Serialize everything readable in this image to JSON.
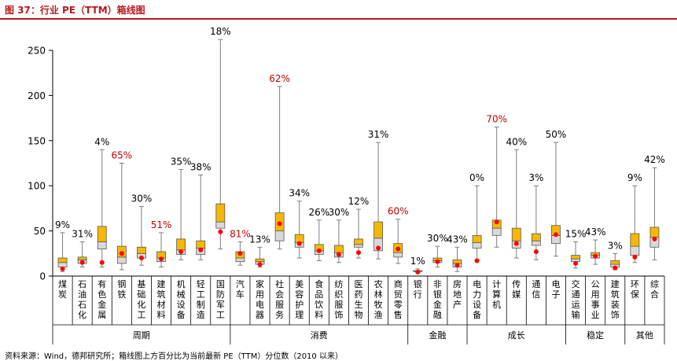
{
  "figure": {
    "title": "图 37：行业 PE（TTM）箱线图",
    "source": "资料来源：Wind，德邦研究所；箱线图上方百分比为当前最新 PE（TTM）分位数（2010 以来）"
  },
  "colors": {
    "accent": "#b8191e",
    "upper_box": "#f5b800",
    "lower_box": "#d9d9d9",
    "current_point": "#ff0000",
    "highlight_label": "#c00000",
    "normal_label": "#000000"
  },
  "chart_data": {
    "type": "box",
    "title": "",
    "xlabel": "",
    "ylabel": "",
    "ylim": [
      0,
      250
    ],
    "yticks": [
      "0",
      "50",
      "100",
      "150",
      "200",
      "250"
    ],
    "grid": false,
    "legend": "none",
    "groups": [
      {
        "name": "周期",
        "count": 9
      },
      {
        "name": "消费",
        "count": 9
      },
      {
        "name": "金融",
        "count": 3
      },
      {
        "name": "成长",
        "count": 5
      },
      {
        "name": "稳定",
        "count": 3
      },
      {
        "name": "其他",
        "count": 2
      }
    ],
    "categories": [
      "煤炭",
      "石油石化",
      "有色金属",
      "钢铁",
      "基础化工",
      "建筑材料",
      "机械设备",
      "轻工制造",
      "国防军工",
      "汽车",
      "家用电器",
      "社会服务",
      "美容护理",
      "食品饮料",
      "纺织服饰",
      "医药生物",
      "农林牧渔",
      "商贸零售",
      "银行",
      "非银金融",
      "房地产",
      "电力设备",
      "计算机",
      "传媒",
      "通信",
      "电子",
      "交通运输",
      "公用事业",
      "建筑装饰",
      "环保",
      "综合"
    ],
    "percentiles": [
      "9%",
      "31%",
      "4%",
      "65%",
      "30%",
      "51%",
      "35%",
      "38%",
      "18%",
      "81%",
      "13%",
      "62%",
      "34%",
      "26%",
      "30%",
      "12%",
      "31%",
      "60%",
      "1%",
      "30%",
      "43%",
      "0%",
      "70%",
      "40%",
      "3%",
      "50%",
      "15%",
      "43%",
      "3%",
      "9%",
      "42%"
    ],
    "highlight": [
      false,
      false,
      false,
      true,
      false,
      true,
      false,
      false,
      false,
      true,
      false,
      true,
      false,
      false,
      false,
      false,
      false,
      true,
      false,
      false,
      false,
      false,
      true,
      false,
      false,
      false,
      false,
      false,
      false,
      false,
      false
    ],
    "min": [
      5,
      10,
      10,
      7,
      12,
      10,
      18,
      18,
      30,
      12,
      10,
      30,
      20,
      17,
      15,
      20,
      19,
      14,
      4,
      10,
      5,
      18,
      32,
      20,
      18,
      22,
      9,
      13,
      7,
      15,
      18
    ],
    "q1": [
      10,
      14,
      30,
      14,
      20,
      16,
      24,
      24,
      53,
      16,
      13,
      39,
      32,
      24,
      21,
      32,
      28,
      21,
      5,
      15,
      10,
      31,
      45,
      31,
      34,
      36,
      16,
      20,
      10,
      23,
      32
    ],
    "median": [
      15,
      18,
      38,
      21,
      25,
      20,
      29,
      31,
      60,
      20,
      16,
      50,
      37,
      28,
      26,
      35,
      42,
      26,
      5.5,
      17,
      14,
      37,
      53,
      39,
      39,
      45,
      19,
      23,
      13,
      33,
      43
    ],
    "q3": [
      20,
      21,
      55,
      33,
      32,
      27,
      41,
      39,
      80,
      27,
      19,
      70,
      46,
      35,
      34,
      41,
      60,
      36,
      6,
      20,
      18,
      45,
      62,
      53,
      47,
      56,
      23,
      26,
      17,
      47,
      54
    ],
    "max": [
      48,
      38,
      140,
      125,
      77,
      48,
      118,
      112,
      262,
      38,
      32,
      210,
      83,
      62,
      62,
      74,
      148,
      63,
      8,
      33,
      32,
      100,
      165,
      140,
      100,
      148,
      38,
      40,
      25,
      100,
      120
    ],
    "current": [
      8,
      15,
      15,
      25,
      20,
      19,
      27,
      29,
      49,
      25,
      13,
      58,
      36,
      28,
      24,
      26,
      31,
      30,
      4.5,
      16,
      12,
      17,
      60,
      36,
      27,
      46,
      14,
      22,
      9,
      21,
      41
    ]
  }
}
